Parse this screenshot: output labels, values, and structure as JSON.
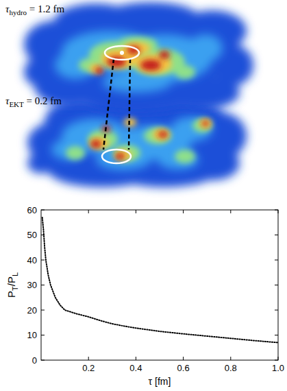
{
  "panels": [
    {
      "symbol": "τ",
      "subscript": "hydro",
      "text": " = 1.2 fm"
    },
    {
      "symbol": "τ",
      "subscript": "EKT",
      "text": " = 0.2 fm"
    }
  ],
  "chart_data": {
    "type": "line",
    "x_label": "τ [fm]",
    "y_label": "PT/PL",
    "x": [
      0.005,
      0.01,
      0.015,
      0.02,
      0.03,
      0.04,
      0.06,
      0.08,
      0.1,
      0.15,
      0.2,
      0.25,
      0.3,
      0.35,
      0.4,
      0.5,
      0.6,
      0.7,
      0.8,
      0.9,
      1.0
    ],
    "values": [
      57,
      52,
      45,
      40,
      34,
      30,
      25,
      22,
      20,
      18.5,
      17.3,
      15.8,
      14.5,
      13.6,
      12.8,
      11.5,
      10.5,
      9.6,
      8.7,
      7.8,
      7
    ],
    "color": "#000000",
    "line_style": "dotted",
    "xlim": [
      0,
      1.0
    ],
    "ylim": [
      0,
      60
    ],
    "xticks": [
      0.2,
      0.4,
      0.6,
      0.8,
      {
        "value": 1,
        "label": "1.0"
      }
    ],
    "yticks": [
      0,
      10,
      20,
      30,
      40,
      50,
      60
    ],
    "grid": false
  }
}
